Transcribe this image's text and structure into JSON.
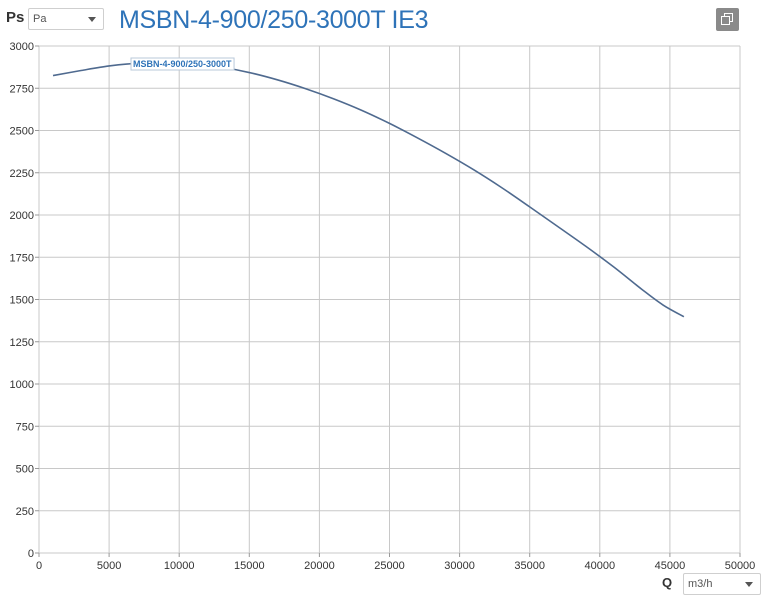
{
  "header": {
    "y_quantity": "Ps",
    "y_unit": "Pa",
    "title": "MSBN-4-900/250-3000T IE3"
  },
  "footer": {
    "x_quantity": "Q",
    "x_unit": "m3/h"
  },
  "icons": {
    "copy": "copy-icon",
    "dropdown": "chevron-down-icon"
  },
  "colors": {
    "title": "#2e73b8",
    "curve": "#4f6a8f",
    "grid": "#c8c8c8"
  },
  "chart_data": {
    "type": "line",
    "title": "MSBN-4-900/250-3000T IE3",
    "xlabel": "Q",
    "ylabel": "Ps",
    "xlim": [
      0,
      50000
    ],
    "ylim": [
      0,
      3000
    ],
    "x_ticks": [
      0,
      5000,
      10000,
      15000,
      20000,
      25000,
      30000,
      35000,
      40000,
      45000,
      50000
    ],
    "y_ticks": [
      0,
      250,
      500,
      750,
      1000,
      1250,
      1500,
      1750,
      2000,
      2250,
      2500,
      2750,
      3000
    ],
    "grid": true,
    "series": [
      {
        "name": "MSBN-4-900/250-3000T",
        "x": [
          1000,
          3000,
          5000,
          7000,
          9000,
          11000,
          13000,
          15000,
          17000,
          19000,
          21000,
          23000,
          25000,
          27000,
          29000,
          31000,
          33000,
          35000,
          37000,
          39000,
          41000,
          43000,
          44500,
          46000
        ],
        "y": [
          2825,
          2855,
          2882,
          2898,
          2904,
          2896,
          2875,
          2843,
          2800,
          2748,
          2688,
          2620,
          2542,
          2456,
          2365,
          2268,
          2162,
          2048,
          1932,
          1815,
          1692,
          1560,
          1468,
          1398
        ]
      }
    ]
  }
}
